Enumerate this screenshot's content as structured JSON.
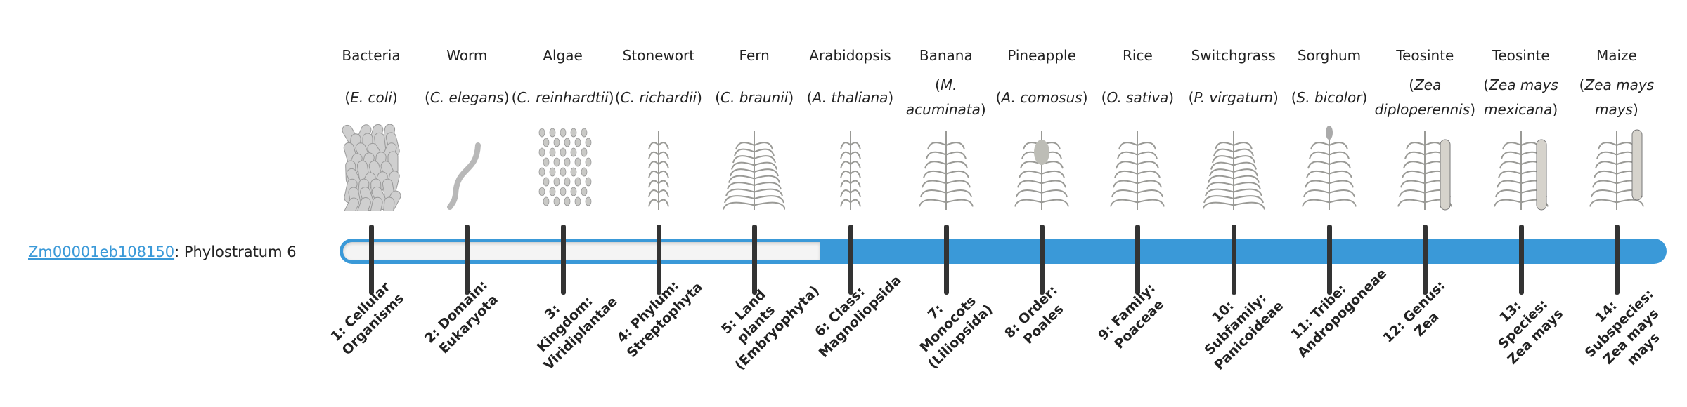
{
  "gene": {
    "id": "Zm00001eb108150",
    "suffix": ": Phylostratum 6",
    "stratum": 6
  },
  "colors": {
    "accent": "#3a99d8",
    "tick": "#333333",
    "track": "#f4f4f4"
  },
  "organisms": [
    {
      "common": "Bacteria",
      "species": "E. coli",
      "icon": "bacteria-illustration",
      "stratum": "1: Cellular Organisms"
    },
    {
      "common": "Worm",
      "species": "C. elegans",
      "icon": "worm-illustration",
      "stratum": "2: Domain: Eukaryota"
    },
    {
      "common": "Algae",
      "species": "C. reinhardtii",
      "icon": "algae-illustration",
      "stratum": "3: Kingdom: Viridiplantae"
    },
    {
      "common": "Stonewort",
      "species": "C. richardii",
      "icon": "stonewort-illustration",
      "stratum": "4: Phylum: Streptophyta"
    },
    {
      "common": "Fern",
      "species": "C. braunii",
      "icon": "fern-illustration",
      "stratum": "5: Land plants (Embryophyta)"
    },
    {
      "common": "Arabidopsis",
      "species": "A. thaliana",
      "icon": "arabidopsis-illustration",
      "stratum": "6: Class: Magnoliopsida"
    },
    {
      "common": "Banana",
      "species": "M. acuminata",
      "icon": "banana-illustration",
      "stratum": "7: Monocots (Liliopsida)"
    },
    {
      "common": "Pineapple",
      "species": "A. comosus",
      "icon": "pineapple-illustration",
      "stratum": "8: Order: Poales"
    },
    {
      "common": "Rice",
      "species": "O. sativa",
      "icon": "rice-illustration",
      "stratum": "9: Family: Poaceae"
    },
    {
      "common": "Switchgrass",
      "species": "P. virgatum",
      "icon": "switchgrass-illustration",
      "stratum": "10: Subfamily: Panicoideae"
    },
    {
      "common": "Sorghum",
      "species": "S. bicolor",
      "icon": "sorghum-illustration",
      "stratum": "11: Tribe: Andropogoneae"
    },
    {
      "common": "Teosinte",
      "species": "Zea diploperennis",
      "icon": "teosinte-illustration",
      "stratum": "12: Genus: Zea"
    },
    {
      "common": "Teosinte",
      "species": "Zea mays mexicana",
      "icon": "teosinte-illustration",
      "stratum": "13: Species: Zea mays"
    },
    {
      "common": "Maize",
      "species": "Zea mays mays",
      "icon": "maize-illustration",
      "stratum": "14: Subspecies: Zea mays mays"
    }
  ]
}
